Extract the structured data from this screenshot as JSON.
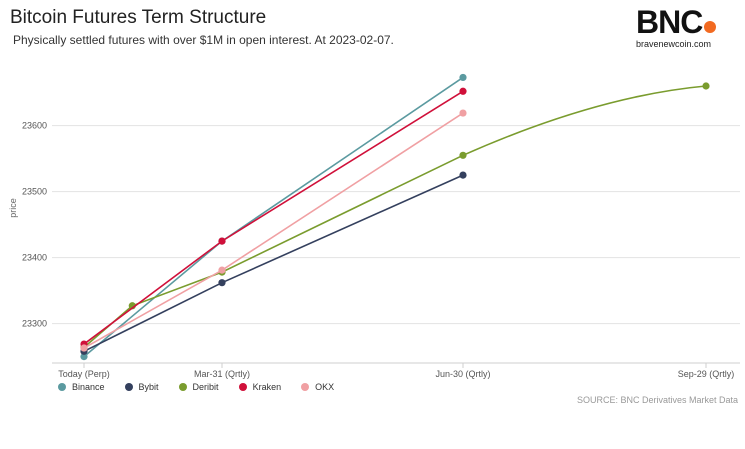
{
  "header": {
    "title": "Bitcoin Futures Term Structure",
    "subtitle": "Physically settled futures with over $1M in open interest. At 2023-02-07."
  },
  "logo": {
    "text": "BNC",
    "url": "bravenewcoin.com",
    "accent_color": "#f26a21"
  },
  "source": "SOURCE: BNC Derivatives Market Data",
  "chart_data": {
    "type": "line",
    "title": "Bitcoin Futures Term Structure",
    "subtitle": "Physically settled futures with over $1M in open interest. At 2023-02-07.",
    "xlabel": "",
    "ylabel": "price",
    "categories": [
      "Today (Perp)",
      "Mar-31 (Qrtly)",
      "Jun-30 (Qrtly)",
      "Sep-29 (Qrtly)"
    ],
    "ylim": [
      23210,
      23710
    ],
    "yticks": [
      23300,
      23400,
      23500,
      23600
    ],
    "grid": true,
    "legend_position": "bottom-left",
    "series": [
      {
        "name": "Binance",
        "color": "#5b9aa0",
        "points": [
          {
            "x": 0,
            "y": 23250
          },
          {
            "x": 1,
            "y": 23425
          },
          {
            "x": 2,
            "y": 23673
          }
        ]
      },
      {
        "name": "Bybit",
        "color": "#34405e",
        "points": [
          {
            "x": 0,
            "y": 23258
          },
          {
            "x": 1,
            "y": 23362
          },
          {
            "x": 2,
            "y": 23525
          }
        ]
      },
      {
        "name": "Deribit",
        "color": "#7a9c2e",
        "points": [
          {
            "x": 0,
            "y": 23264
          },
          {
            "x": 0.35,
            "y": 23327
          },
          {
            "x": 1,
            "y": 23378
          },
          {
            "x": 2,
            "y": 23555
          },
          {
            "x": 3,
            "y": 23660
          }
        ]
      },
      {
        "name": "Kraken",
        "color": "#d0103a",
        "points": [
          {
            "x": 0,
            "y": 23269
          },
          {
            "x": 1,
            "y": 23425
          },
          {
            "x": 2,
            "y": 23652
          }
        ]
      },
      {
        "name": "OKX",
        "color": "#f0a0a3",
        "points": [
          {
            "x": 0,
            "y": 23263
          },
          {
            "x": 1,
            "y": 23381
          },
          {
            "x": 2,
            "y": 23619
          }
        ]
      }
    ]
  }
}
